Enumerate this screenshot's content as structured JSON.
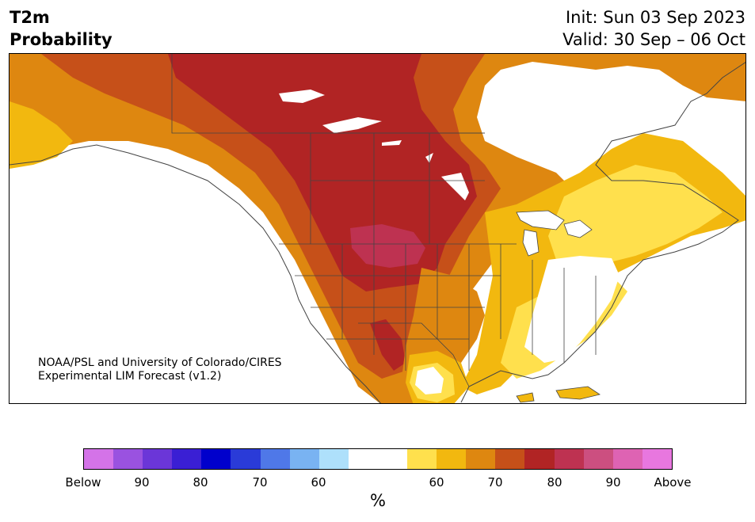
{
  "header": {
    "title_line1": "T2m",
    "title_line2": "Probability",
    "init": "Init: Sun 03 Sep 2023",
    "valid": "Valid: 30 Sep – 06 Oct"
  },
  "map": {
    "credit_line1": "NOAA/PSL and University of Colorado/CIRES",
    "credit_line2": "Experimental LIM Forecast (v1.2)",
    "region": "North America"
  },
  "colorbar": {
    "colors": [
      "#d473e8",
      "#9a52e0",
      "#6b36d8",
      "#3a1fd4",
      "#0000cc",
      "#2a3bd8",
      "#4f78e8",
      "#79b3f2",
      "#aee0fb",
      "#ffffff",
      "#ffffff",
      "#ffe04d",
      "#f2b80f",
      "#de8710",
      "#c65019",
      "#b12424",
      "#be3251",
      "#cc4f80",
      "#de63b3",
      "#e877df"
    ],
    "labels": [
      "Below",
      "90",
      "80",
      "70",
      "60",
      "60",
      "70",
      "80",
      "90",
      "Above"
    ],
    "unit": "%"
  }
}
